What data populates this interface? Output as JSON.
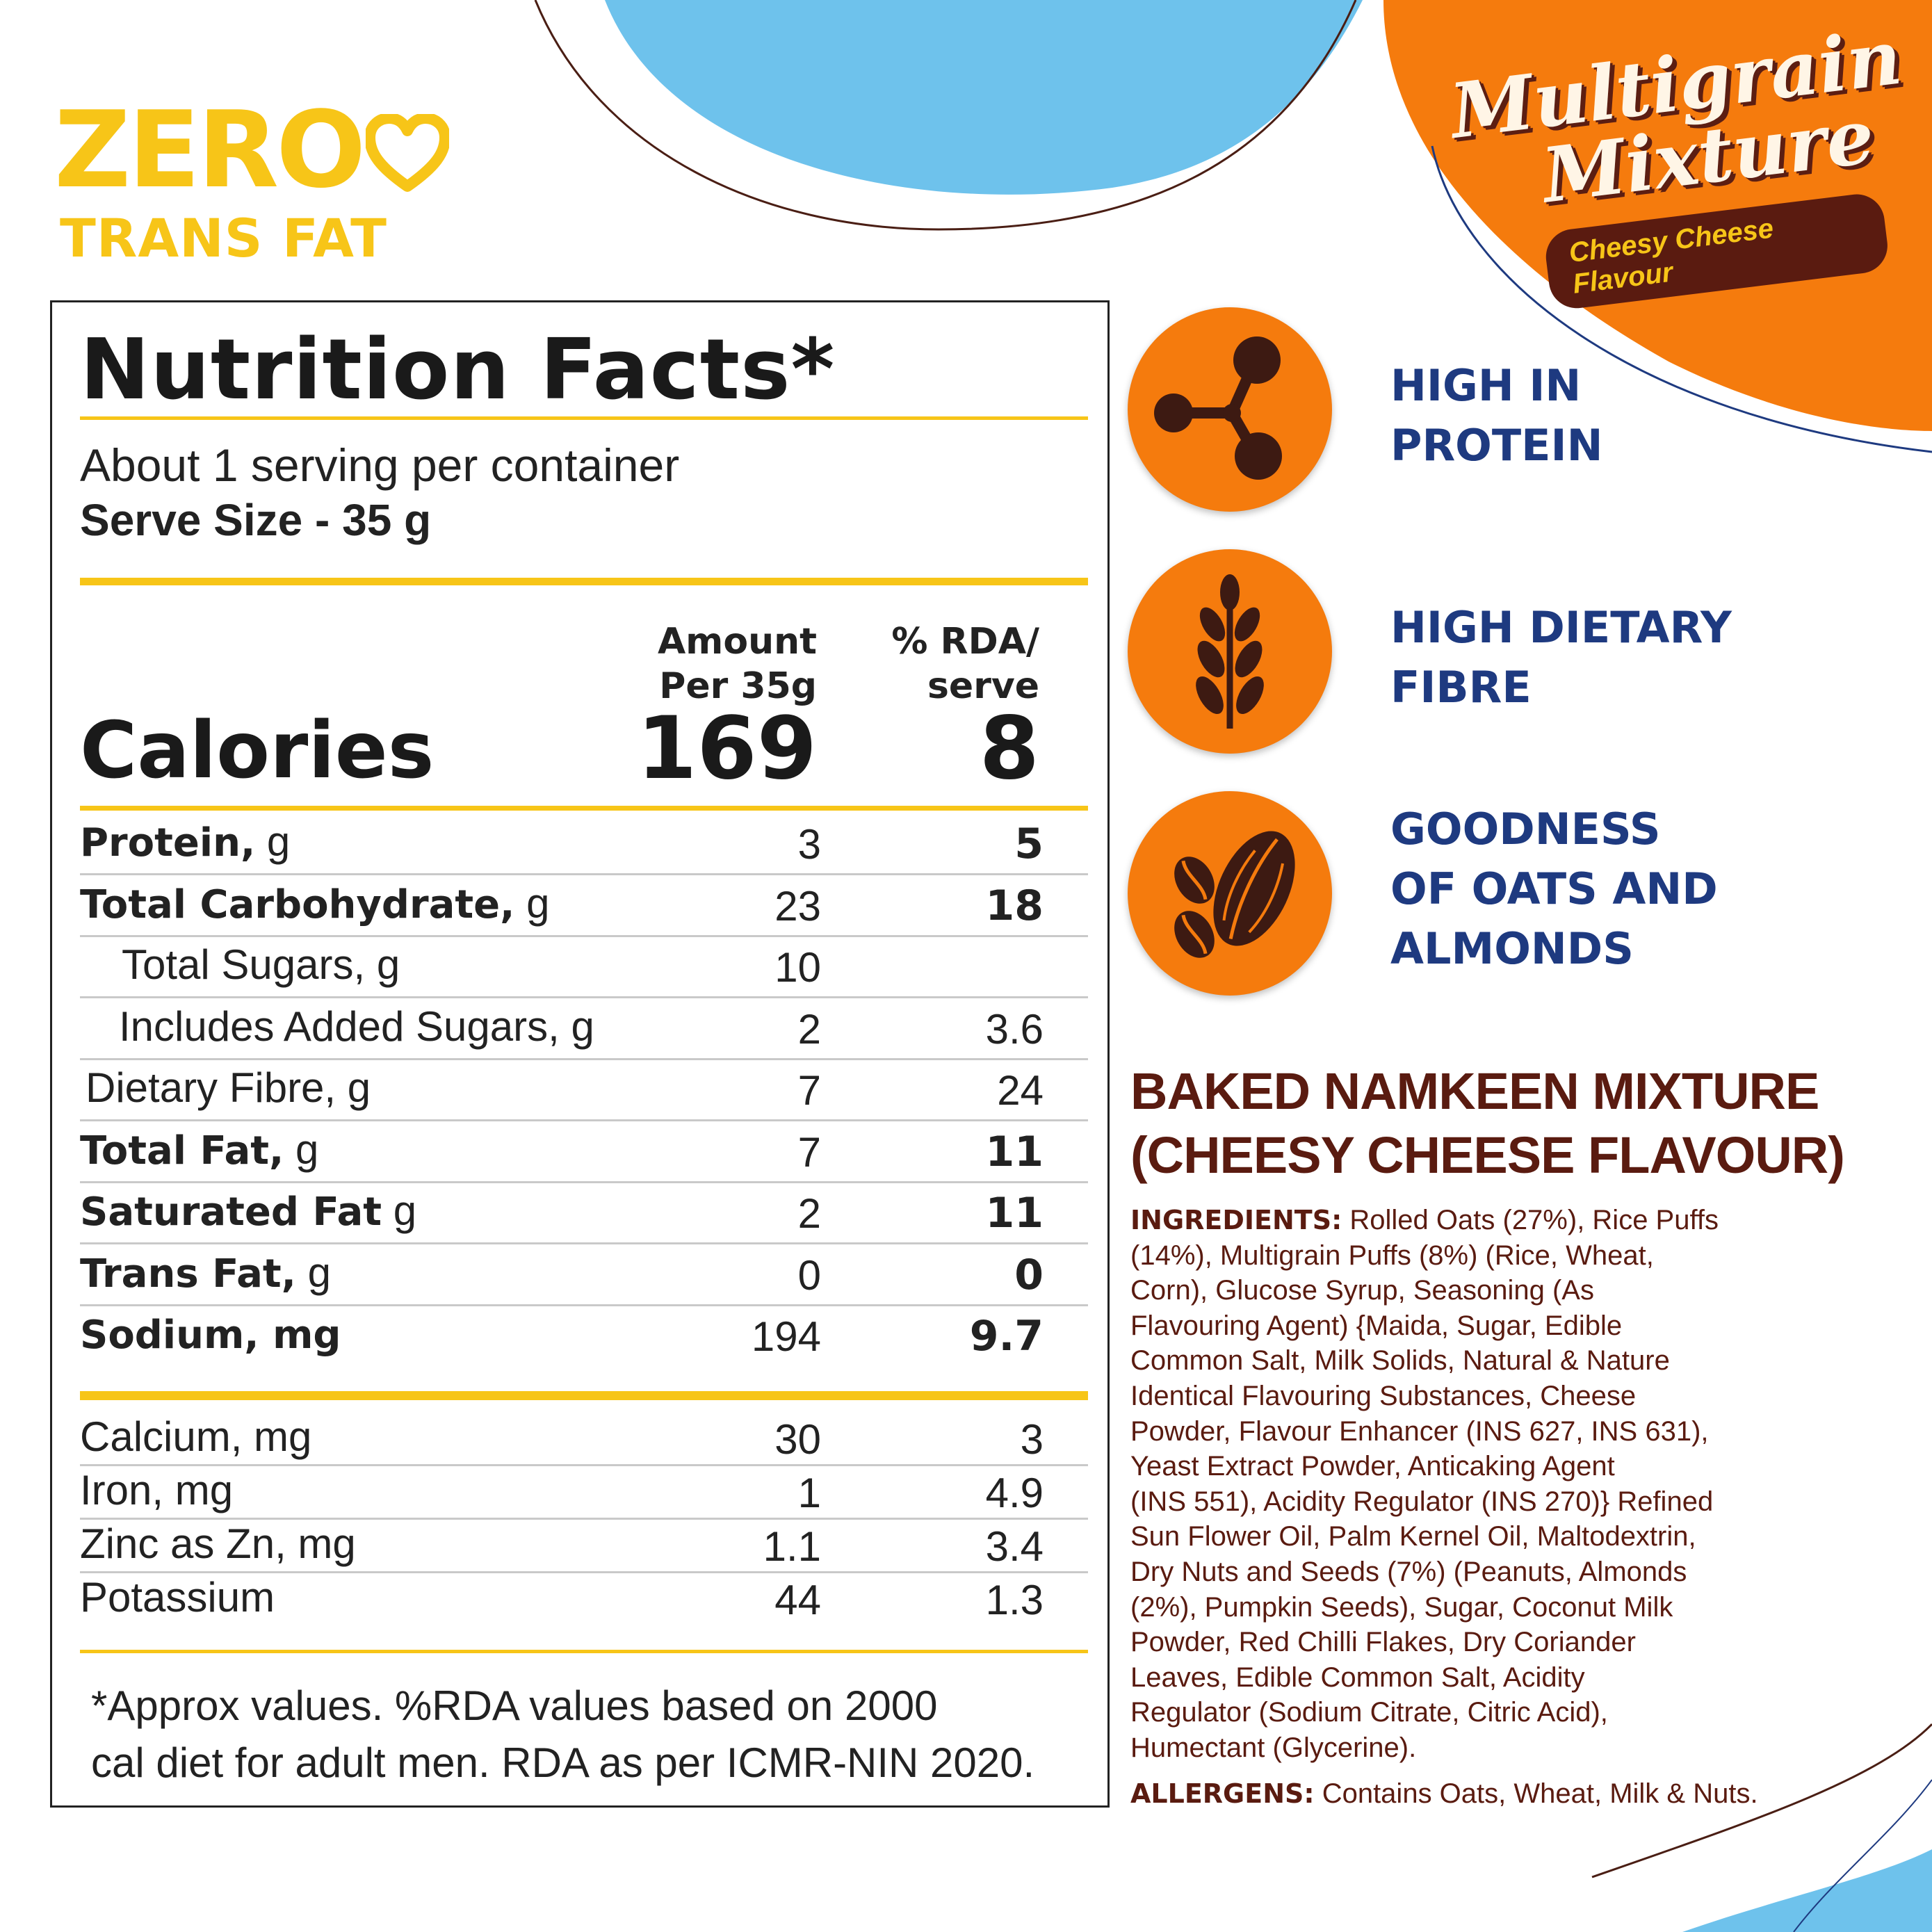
{
  "badge": {
    "zero": "ZERO",
    "sub": "TRANS FAT"
  },
  "product": {
    "title_line1": "Multigrain",
    "title_line2": "Mixture",
    "flavour": "Cheesy Cheese Flavour"
  },
  "nutrition": {
    "title": "Nutrition Facts*",
    "servings": "About 1 serving per container",
    "serve_size": "Serve Size - 35 g",
    "col_amount_1": "Amount",
    "col_amount_2": "Per 35g",
    "col_rda_1": "% RDA/",
    "col_rda_2": "serve",
    "calories_label": "Calories",
    "calories_amount": "169",
    "calories_rda": "8",
    "rows": [
      {
        "bold": "Protein,",
        "unit": " g",
        "amount": "3",
        "rda": "5"
      },
      {
        "bold": "Total Carbohydrate,",
        "unit": " g",
        "amount": "23",
        "rda": "18"
      },
      {
        "label": "Total Sugars, g",
        "amount": "10",
        "rda": ""
      },
      {
        "label": "Includes Added Sugars, g",
        "amount": "2",
        "rda": "3.6"
      },
      {
        "label": "Dietary Fibre, g",
        "amount": "7",
        "rda": "24"
      },
      {
        "bold": "Total Fat,",
        "unit": " g",
        "amount": "7",
        "rda": "11"
      },
      {
        "bold": "Saturated Fat",
        "unit": " g",
        "amount": "2",
        "rda": "11"
      },
      {
        "bold": "Trans Fat,",
        "unit": " g",
        "amount": "0",
        "rda": "0"
      },
      {
        "bold": "Sodium, mg",
        "unit": "",
        "amount": "194",
        "rda": "9.7"
      }
    ],
    "minerals": [
      {
        "label": "Calcium, mg",
        "amount": "30",
        "rda": "3"
      },
      {
        "label": "Iron, mg",
        "amount": "1",
        "rda": "4.9"
      },
      {
        "label": "Zinc as Zn, mg",
        "amount": "1.1",
        "rda": "3.4"
      },
      {
        "label": "Potassium",
        "amount": "44",
        "rda": "1.3"
      }
    ],
    "footnote_1": "*Approx values. %RDA values based on 2000",
    "footnote_2": "cal diet for adult men. RDA as per ICMR-NIN 2020."
  },
  "features": [
    {
      "icon": "molecule-icon",
      "line1": "HIGH IN",
      "line2": "PROTEIN",
      "line3": ""
    },
    {
      "icon": "wheat-icon",
      "line1": "HIGH DIETARY",
      "line2": "FIBRE",
      "line3": ""
    },
    {
      "icon": "nuts-icon",
      "line1": "GOODNESS",
      "line2": "OF OATS AND",
      "line3": "ALMONDS"
    }
  ],
  "product_name_1": "BAKED NAMKEEN MIXTURE",
  "product_name_2": "(CHEESY CHEESE FLAVOUR)",
  "ingredients_label": "INGREDIENTS:",
  "ingredients_lines": [
    " Rolled Oats (27%), Rice Puffs",
    "(14%), Multigrain Puffs (8%) (Rice, Wheat,",
    "Corn), Glucose Syrup, Seasoning (As",
    "Flavouring Agent) {Maida, Sugar, Edible",
    "Common Salt, Milk Solids, Natural & Nature",
    "Identical Flavouring Substances, Cheese",
    "Powder, Flavour Enhancer (INS 627, INS 631),",
    "Yeast Extract Powder, Anticaking Agent",
    "(INS 551), Acidity Regulator (INS 270)} Refined",
    "Sun Flower Oil, Palm Kernel Oil, Maltodextrin,",
    "Dry Nuts and Seeds (7%) (Peanuts, Almonds",
    "(2%), Pumpkin Seeds), Sugar, Coconut Milk",
    "Powder, Red Chilli Flakes, Dry Coriander",
    "Leaves, Edible Common Salt, Acidity",
    "Regulator (Sodium Citrate, Citric Acid),",
    "Humectant (Glycerine)."
  ],
  "allergens_label": "ALLERGENS:",
  "allergens_text": " Contains Oats, Wheat, Milk & Nuts.",
  "colors": {
    "orange": "#f57b0d",
    "yellow": "#f7c518",
    "sky_blue": "#6ec2ec",
    "navy": "#1e3a80",
    "brown": "#5a1b10"
  }
}
